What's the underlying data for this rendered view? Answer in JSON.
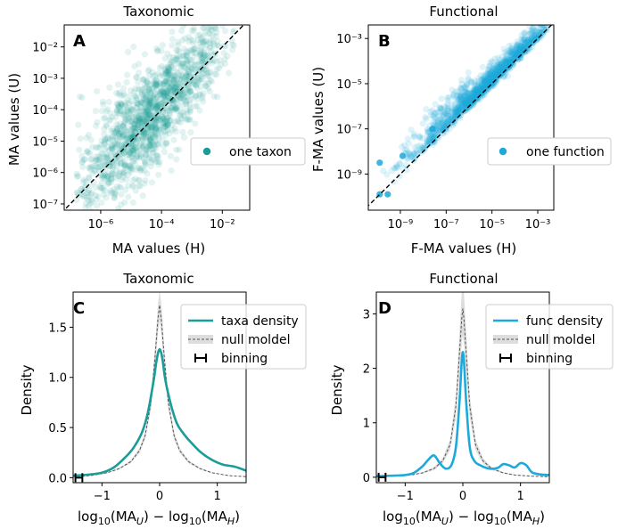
{
  "chart_data": [
    {
      "id": "A",
      "type": "scatter",
      "panel_letter": "A",
      "title": "Taxonomic",
      "xlabel": "MA values (H)",
      "ylabel": "MA values (U)",
      "xscale": "log",
      "yscale": "log",
      "xlim_exp": [
        -7.2,
        -1.1
      ],
      "ylim_exp": [
        -7.2,
        -1.3
      ],
      "xticks": [
        {
          "v": -6,
          "label": "10⁻⁶"
        },
        {
          "v": -4,
          "label": "10⁻⁴"
        },
        {
          "v": -2,
          "label": "10⁻²"
        }
      ],
      "yticks": [
        {
          "v": -7,
          "label": "10⁻⁷"
        },
        {
          "v": -6,
          "label": "10⁻⁶"
        },
        {
          "v": -5,
          "label": "10⁻⁵"
        },
        {
          "v": -4,
          "label": "10⁻⁴"
        },
        {
          "v": -3,
          "label": "10⁻³"
        },
        {
          "v": -2,
          "label": "10⁻²"
        }
      ],
      "reference_line": "y = x (dashed)",
      "color": "#1a9c98",
      "legend": {
        "label": "one taxon",
        "position": "center-right"
      },
      "cloud": {
        "n": 1500,
        "x_min_exp": -6.8,
        "x_max_exp": -1.6,
        "center_exp": -4.4,
        "spread_dex": 0.75
      }
    },
    {
      "id": "B",
      "type": "scatter",
      "panel_letter": "B",
      "title": "Functional",
      "xlabel": "F-MA values (H)",
      "ylabel": "F-MA values (U)",
      "xscale": "log",
      "yscale": "log",
      "xlim_exp": [
        -10.4,
        -2.3
      ],
      "ylim_exp": [
        -10.6,
        -2.4
      ],
      "xticks": [
        {
          "v": -9,
          "label": "10⁻⁹"
        },
        {
          "v": -7,
          "label": "10⁻⁷"
        },
        {
          "v": -5,
          "label": "10⁻⁵"
        },
        {
          "v": -3,
          "label": "10⁻³"
        }
      ],
      "yticks": [
        {
          "v": -9,
          "label": "10⁻⁹"
        },
        {
          "v": -7,
          "label": "10⁻⁷"
        },
        {
          "v": -5,
          "label": "10⁻⁵"
        },
        {
          "v": -3,
          "label": "10⁻³"
        }
      ],
      "reference_line": "y = x (dashed)",
      "color": "#1ca9dc",
      "legend": {
        "label": "one function",
        "position": "center-right"
      },
      "cloud": {
        "n": 1300,
        "x_min_exp": -10.0,
        "x_max_exp": -2.6,
        "center_exp": -5.2,
        "spread_dex": 0.55
      }
    },
    {
      "id": "C",
      "type": "line",
      "panel_letter": "C",
      "title": "Taxonomic",
      "xlabel": "log₁₀(MA_U) − log₁₀(MA_H)",
      "ylabel": "Density",
      "xlim": [
        -1.5,
        1.5
      ],
      "ylim": [
        -0.05,
        1.85
      ],
      "xticks": [
        {
          "v": -1,
          "label": "−1"
        },
        {
          "v": 0,
          "label": "0"
        },
        {
          "v": 1,
          "label": "1"
        }
      ],
      "yticks": [
        {
          "v": 0,
          "label": "0.0"
        },
        {
          "v": 0.5,
          "label": "0.5"
        },
        {
          "v": 1.0,
          "label": "1.0"
        },
        {
          "v": 1.5,
          "label": "1.5"
        }
      ],
      "color": "#1a9c98",
      "series": [
        {
          "name": "taxa density",
          "style": "solid",
          "x": [
            -1.5,
            -1.25,
            -1.0,
            -0.8,
            -0.6,
            -0.45,
            -0.3,
            -0.2,
            -0.1,
            -0.05,
            0.0,
            0.05,
            0.1,
            0.2,
            0.3,
            0.4,
            0.5,
            0.7,
            0.9,
            1.1,
            1.3,
            1.5
          ],
          "y": [
            0.02,
            0.03,
            0.05,
            0.1,
            0.2,
            0.3,
            0.46,
            0.66,
            0.98,
            1.18,
            1.28,
            1.18,
            0.97,
            0.72,
            0.54,
            0.45,
            0.38,
            0.26,
            0.18,
            0.13,
            0.11,
            0.07
          ]
        },
        {
          "name": "null moldel",
          "style": "dashed",
          "x": [
            -1.5,
            -1.2,
            -0.9,
            -0.7,
            -0.5,
            -0.35,
            -0.25,
            -0.15,
            -0.08,
            -0.03,
            0.0,
            0.03,
            0.08,
            0.15,
            0.25,
            0.35,
            0.5,
            0.7,
            0.9,
            1.2,
            1.5
          ],
          "y": [
            0.01,
            0.02,
            0.05,
            0.09,
            0.16,
            0.27,
            0.42,
            0.75,
            1.2,
            1.58,
            1.72,
            1.58,
            1.2,
            0.75,
            0.42,
            0.27,
            0.16,
            0.09,
            0.05,
            0.02,
            0.01
          ]
        }
      ],
      "null_band_halfwidth": 0.09,
      "binning": {
        "label": "binning",
        "x": -1.4,
        "halfwidth": 0.06,
        "y": 0.0
      },
      "legend_position": "top-right"
    },
    {
      "id": "D",
      "type": "line",
      "panel_letter": "D",
      "title": "Functional",
      "xlabel": "log₁₀(MA_U) − log₁₀(MA_H)",
      "ylabel": "Density",
      "xlim": [
        -1.5,
        1.5
      ],
      "ylim": [
        -0.1,
        3.4
      ],
      "xticks": [
        {
          "v": -1,
          "label": "−1"
        },
        {
          "v": 0,
          "label": "0"
        },
        {
          "v": 1,
          "label": "1"
        }
      ],
      "yticks": [
        {
          "v": 0,
          "label": "0"
        },
        {
          "v": 1,
          "label": "1"
        },
        {
          "v": 2,
          "label": "2"
        },
        {
          "v": 3,
          "label": "3"
        }
      ],
      "color": "#1ca9dc",
      "series": [
        {
          "name": "func density",
          "style": "solid",
          "x": [
            -1.5,
            -1.2,
            -1.0,
            -0.85,
            -0.7,
            -0.6,
            -0.5,
            -0.4,
            -0.3,
            -0.2,
            -0.12,
            -0.06,
            0.0,
            0.06,
            0.12,
            0.2,
            0.3,
            0.45,
            0.6,
            0.7,
            0.8,
            0.9,
            1.0,
            1.1,
            1.2,
            1.35,
            1.5
          ],
          "y": [
            0.02,
            0.03,
            0.04,
            0.08,
            0.2,
            0.32,
            0.4,
            0.26,
            0.16,
            0.22,
            0.55,
            1.35,
            2.3,
            1.35,
            0.55,
            0.3,
            0.22,
            0.16,
            0.17,
            0.24,
            0.22,
            0.18,
            0.26,
            0.22,
            0.09,
            0.05,
            0.04
          ]
        },
        {
          "name": "null moldel",
          "style": "dashed",
          "x": [
            -1.5,
            -1.2,
            -0.9,
            -0.7,
            -0.5,
            -0.35,
            -0.22,
            -0.12,
            -0.06,
            -0.02,
            0.0,
            0.02,
            0.06,
            0.12,
            0.22,
            0.35,
            0.5,
            0.7,
            0.9,
            1.2,
            1.5
          ],
          "y": [
            0.01,
            0.02,
            0.04,
            0.08,
            0.16,
            0.3,
            0.6,
            1.3,
            2.25,
            2.9,
            3.1,
            2.9,
            2.25,
            1.3,
            0.6,
            0.3,
            0.16,
            0.08,
            0.04,
            0.02,
            0.01
          ]
        }
      ],
      "null_band_halfwidth": 0.16,
      "binning": {
        "label": "binning",
        "x": -1.4,
        "halfwidth": 0.06,
        "y": 0.0
      },
      "legend_position": "top-right"
    }
  ]
}
